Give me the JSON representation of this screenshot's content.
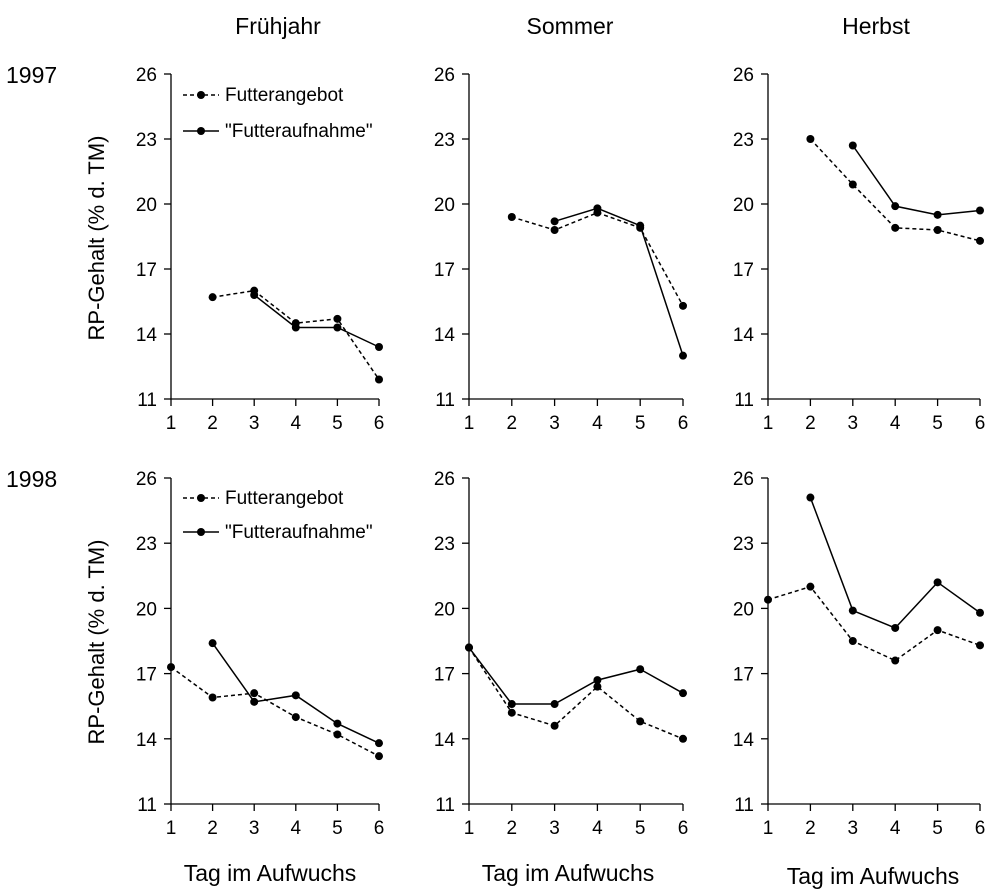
{
  "columns": [
    "Frühjahr",
    "Sommer",
    "Herbst"
  ],
  "rows": [
    "1997",
    "1998"
  ],
  "ylabel": "RP-Gehalt (% d. TM)",
  "xlabel": "Tag im Aufwuchs",
  "legend": {
    "angebot": "Futterangebot",
    "aufnahme": "\"Futteraufnahme\"",
    "placement": "top-left"
  },
  "chart_data": [
    {
      "type": "line",
      "row": "1997",
      "column": "Frühjahr",
      "x": [
        1,
        2,
        3,
        4,
        5,
        6
      ],
      "ylim": [
        11,
        26
      ],
      "yticks": [
        11,
        14,
        17,
        20,
        23,
        26
      ],
      "xticks": [
        1,
        2,
        3,
        4,
        5,
        6
      ],
      "xlabel": "",
      "ylabel": "RP-Gehalt (% d. TM)",
      "grid": false,
      "series": [
        {
          "name": "Futterangebot",
          "style": "dotted",
          "values": [
            null,
            15.7,
            16.0,
            14.5,
            14.7,
            11.9
          ]
        },
        {
          "name": "\"Futteraufnahme\"",
          "style": "solid",
          "values": [
            null,
            null,
            15.8,
            14.3,
            14.3,
            13.4
          ]
        }
      ]
    },
    {
      "type": "line",
      "row": "1997",
      "column": "Sommer",
      "x": [
        1,
        2,
        3,
        4,
        5,
        6
      ],
      "ylim": [
        11,
        26
      ],
      "yticks": [
        11,
        14,
        17,
        20,
        23,
        26
      ],
      "xticks": [
        1,
        2,
        3,
        4,
        5,
        6
      ],
      "xlabel": "",
      "ylabel": "",
      "grid": false,
      "series": [
        {
          "name": "Futterangebot",
          "style": "dotted",
          "values": [
            null,
            19.4,
            18.8,
            19.6,
            18.9,
            15.3
          ]
        },
        {
          "name": "\"Futteraufnahme\"",
          "style": "solid",
          "values": [
            null,
            null,
            19.2,
            19.8,
            19.0,
            13.0
          ]
        }
      ]
    },
    {
      "type": "line",
      "row": "1997",
      "column": "Herbst",
      "x": [
        1,
        2,
        3,
        4,
        5,
        6
      ],
      "ylim": [
        11,
        26
      ],
      "yticks": [
        11,
        14,
        17,
        20,
        23,
        26
      ],
      "xticks": [
        1,
        2,
        3,
        4,
        5,
        6
      ],
      "xlabel": "",
      "ylabel": "",
      "grid": false,
      "series": [
        {
          "name": "Futterangebot",
          "style": "dotted",
          "values": [
            null,
            23.0,
            20.9,
            18.9,
            18.8,
            18.3
          ]
        },
        {
          "name": "\"Futteraufnahme\"",
          "style": "solid",
          "values": [
            null,
            null,
            22.7,
            19.9,
            19.5,
            19.7
          ]
        }
      ]
    },
    {
      "type": "line",
      "row": "1998",
      "column": "Frühjahr",
      "x": [
        1,
        2,
        3,
        4,
        5,
        6
      ],
      "ylim": [
        11,
        26
      ],
      "yticks": [
        11,
        14,
        17,
        20,
        23,
        26
      ],
      "xticks": [
        1,
        2,
        3,
        4,
        5,
        6
      ],
      "xlabel": "Tag im Aufwuchs",
      "ylabel": "RP-Gehalt (% d. TM)",
      "grid": false,
      "series": [
        {
          "name": "Futterangebot",
          "style": "dotted",
          "values": [
            17.3,
            15.9,
            16.1,
            15.0,
            14.2,
            13.2
          ]
        },
        {
          "name": "\"Futteraufnahme\"",
          "style": "solid",
          "values": [
            null,
            18.4,
            15.7,
            16.0,
            14.7,
            13.8
          ]
        }
      ]
    },
    {
      "type": "line",
      "row": "1998",
      "column": "Sommer",
      "x": [
        1,
        2,
        3,
        4,
        5,
        6
      ],
      "ylim": [
        11,
        26
      ],
      "yticks": [
        11,
        14,
        17,
        20,
        23,
        26
      ],
      "xticks": [
        1,
        2,
        3,
        4,
        5,
        6
      ],
      "xlabel": "Tag im Aufwuchs",
      "ylabel": "",
      "grid": false,
      "series": [
        {
          "name": "Futterangebot",
          "style": "dotted",
          "values": [
            18.2,
            15.2,
            14.6,
            16.4,
            14.8,
            14.0
          ]
        },
        {
          "name": "\"Futteraufnahme\"",
          "style": "solid",
          "values": [
            18.2,
            15.6,
            15.6,
            16.7,
            17.2,
            16.1
          ]
        }
      ]
    },
    {
      "type": "line",
      "row": "1998",
      "column": "Herbst",
      "x": [
        1,
        2,
        3,
        4,
        5,
        6
      ],
      "ylim": [
        11,
        26
      ],
      "yticks": [
        11,
        14,
        17,
        20,
        23,
        26
      ],
      "xticks": [
        1,
        2,
        3,
        4,
        5,
        6
      ],
      "xlabel": "Tag im Aufwuchs",
      "ylabel": "",
      "grid": false,
      "series": [
        {
          "name": "Futterangebot",
          "style": "dotted",
          "values": [
            20.4,
            21.0,
            18.5,
            17.6,
            19.0,
            18.3
          ]
        },
        {
          "name": "\"Futteraufnahme\"",
          "style": "solid",
          "values": [
            null,
            25.1,
            19.9,
            19.1,
            21.2,
            19.8
          ]
        }
      ]
    }
  ]
}
